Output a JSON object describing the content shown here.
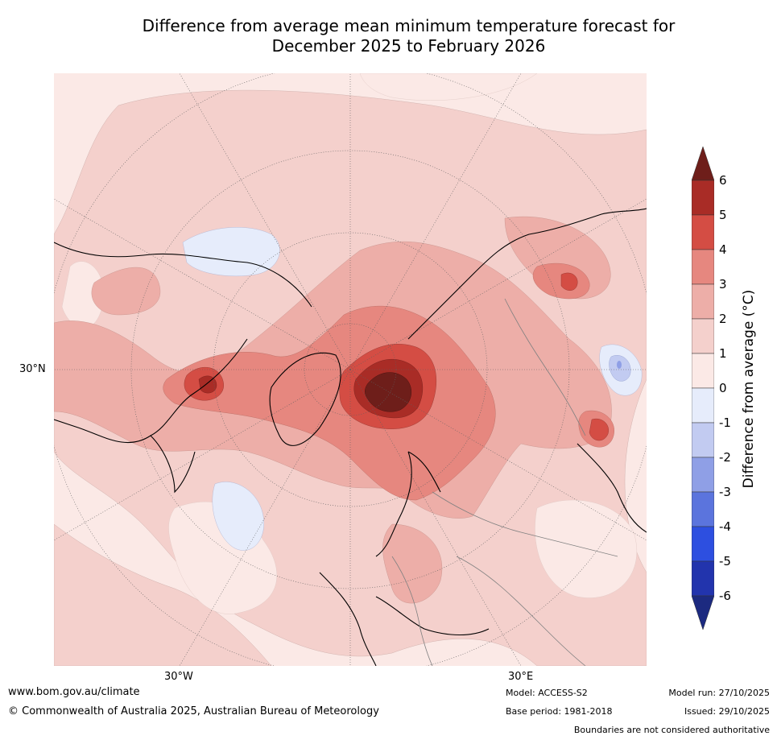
{
  "title_line1": "Difference from average mean minimum temperature forecast for",
  "title_line2": "December 2025 to February 2026",
  "map": {
    "projection": "north polar stereographic",
    "lat_labels": [
      "30°N"
    ],
    "lon_labels": [
      "30°W",
      "30°E"
    ],
    "colors": {
      "ocean_base": "#fbe9e6",
      "w0_1": "#fbe9e6",
      "w1_2": "#f4d0cc",
      "w2_3": "#edaea8",
      "w3_4": "#e6877f",
      "w4_5": "#d44d44",
      "w5_6": "#a92c26",
      "w6p": "#6e1e1a",
      "c0_1": "#e6ecfb",
      "c1_2": "#c2cbf1",
      "c2_3": "#8f9fe6",
      "coast": "#000000",
      "border": "#808080",
      "grid": "#808080"
    }
  },
  "colorbar": {
    "title": "Difference from average (°C)",
    "ticks": [
      "6",
      "5",
      "4",
      "3",
      "2",
      "1",
      "0",
      "-1",
      "-2",
      "-3",
      "-4",
      "-5",
      "-6"
    ],
    "colors": [
      "#a92c26",
      "#d44d44",
      "#e6877f",
      "#edaea8",
      "#f4d0cc",
      "#fbe9e6",
      "#e6ecfb",
      "#c2cbf1",
      "#8f9fe6",
      "#5b74dd",
      "#2d4fe0",
      "#2234ad"
    ],
    "top_arrow_color": "#6e1e1a",
    "bottom_arrow_color": "#1c2a80"
  },
  "footer": {
    "website": "www.bom.gov.au/climate",
    "copyright": "© Commonwealth of Australia 2025, Australian Bureau of Meteorology",
    "model": "Model: ACCESS-S2",
    "base_period": "Base period: 1981-2018",
    "model_run": "Model run: 27/10/2025",
    "issued": "Issued: 29/10/2025",
    "disclaimer": "Boundaries are not considered authoritative"
  }
}
